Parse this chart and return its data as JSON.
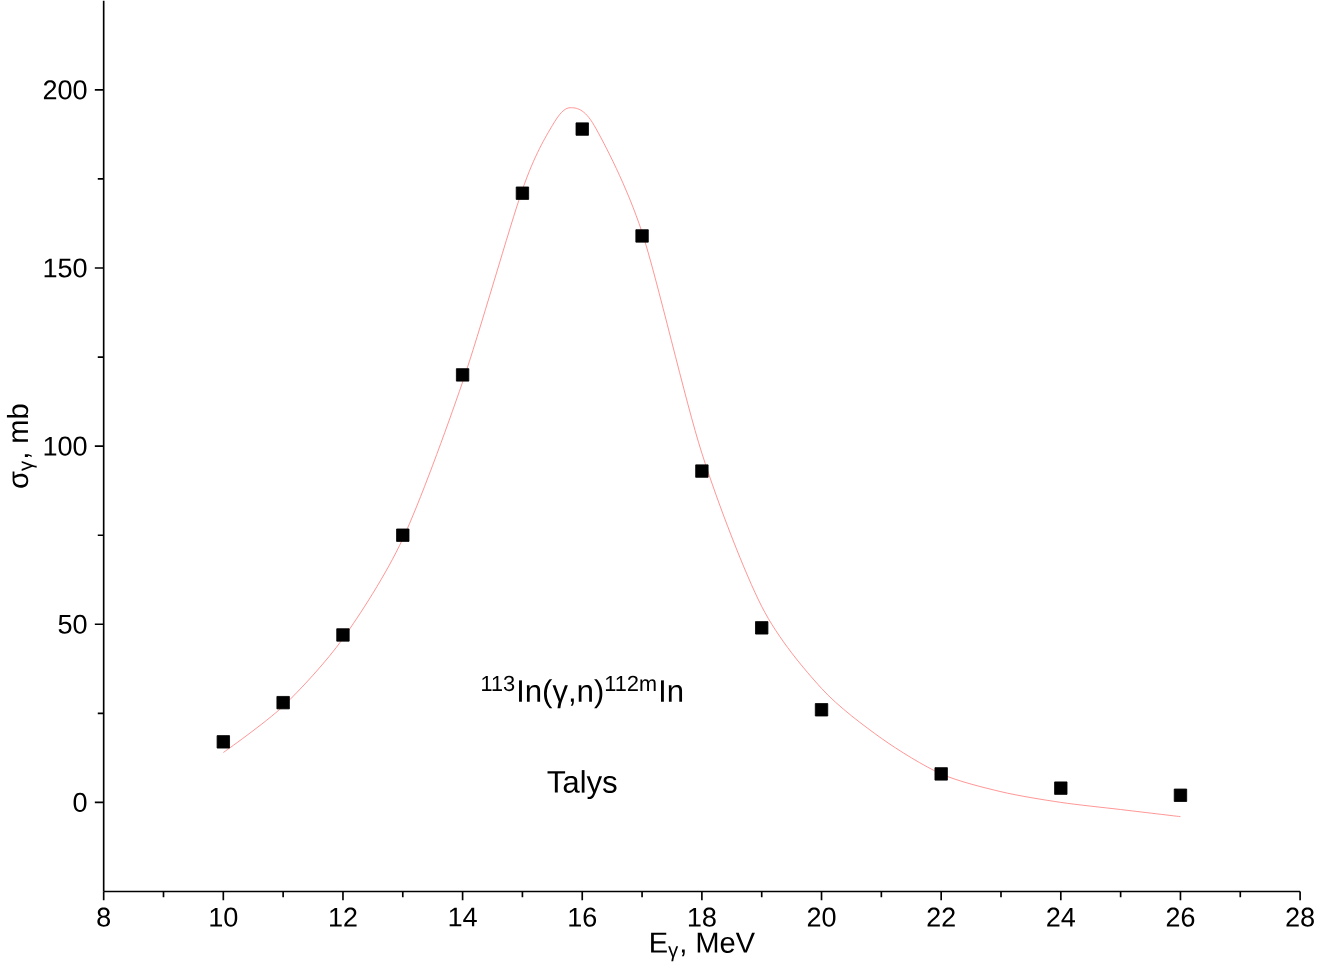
{
  "chart_data": {
    "type": "scatter",
    "xlabel": "E$_{γ}$, MeV",
    "ylabel": "σ$_{γ}$, mb",
    "annotations": [
      "$^{113}$In(γ,n)$^{112m}$In",
      "Talys"
    ],
    "x": [
      10,
      11,
      12,
      13,
      14,
      15,
      16,
      17,
      18,
      19,
      20,
      22,
      24,
      26
    ],
    "series": [
      {
        "color": "#000000",
        "marker": "square",
        "values": [
          17,
          28,
          47,
          75,
          120,
          171,
          189,
          159,
          93,
          49,
          26,
          8,
          4,
          2
        ]
      },
      {
        "type": "line",
        "color": "#ff8080",
        "line_style": "solid",
        "x": [
          10,
          11,
          12,
          13,
          14,
          15,
          15.5,
          15.8,
          16.2,
          17,
          18,
          19,
          20,
          21,
          22,
          23,
          24,
          25,
          26
        ],
        "values": [
          14,
          27,
          46,
          74,
          118,
          172,
          190,
          195,
          190,
          160,
          98,
          55,
          32,
          18,
          8,
          3,
          0,
          -2,
          -4
        ]
      }
    ],
    "xlim": [
      8,
      28
    ],
    "ylim": [
      -25,
      225
    ],
    "xticks": [
      8,
      10,
      12,
      14,
      16,
      18,
      20,
      22,
      24,
      26,
      28
    ],
    "yticks": [
      0,
      50,
      100,
      150,
      200
    ],
    "grid": false
  }
}
